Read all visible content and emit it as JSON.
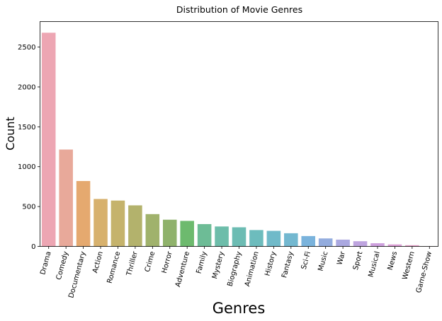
{
  "chart_data": {
    "type": "bar",
    "title": "Distribution of Movie Genres",
    "xlabel": "Genres",
    "ylabel": "Count",
    "ylim": [
      0,
      2820
    ],
    "yticks": [
      0,
      500,
      1000,
      1500,
      2000,
      2500
    ],
    "grid": false,
    "categories": [
      "Drama",
      "Comedy",
      "Documentary",
      "Action",
      "Romance",
      "Thriller",
      "Crime",
      "Horror",
      "Adventure",
      "Family",
      "Mystery",
      "Biography",
      "Animation",
      "History",
      "Fantasy",
      "Sci-Fi",
      "Music",
      "War",
      "Sport",
      "Musical",
      "News",
      "Western",
      "Game-Show"
    ],
    "values": [
      2680,
      1215,
      820,
      595,
      575,
      515,
      405,
      335,
      320,
      280,
      250,
      240,
      205,
      195,
      165,
      130,
      100,
      85,
      65,
      40,
      25,
      15,
      2
    ],
    "colors": [
      "#eda6b3",
      "#e8a99a",
      "#e5a96f",
      "#d7b16d",
      "#c5b36c",
      "#b3b26c",
      "#a0b26c",
      "#8fb26b",
      "#6dba6e",
      "#6dbc96",
      "#6dbdaa",
      "#6cbcb3",
      "#6dbcbd",
      "#70bac9",
      "#73b8d0",
      "#7ab3dc",
      "#93acde",
      "#aaa8e0",
      "#bea4df",
      "#cea0de",
      "#dd9fd6",
      "#e6a0c9",
      "#eea4bc"
    ]
  }
}
